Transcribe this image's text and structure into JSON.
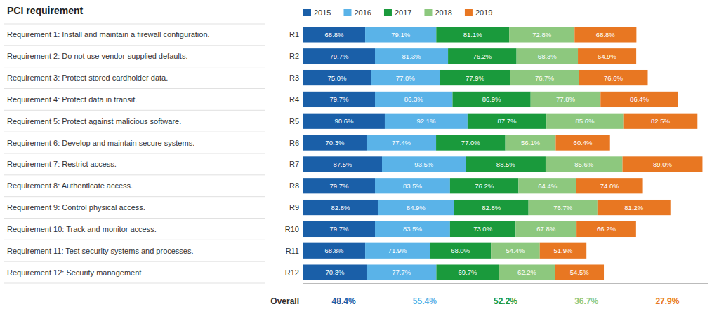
{
  "chart_data": {
    "type": "bar",
    "orientation": "horizontal",
    "stacked": true,
    "data_labels": true,
    "legend": "top",
    "tick_labels": "y",
    "title": "PCI requirement",
    "annotations": [
      "Requirement 1: Install and maintain a firewall configuration.",
      "Requirement 2: Do not use vendor-supplied defaults.",
      "Requirement 3: Protect stored cardholder data.",
      "Requirement 4: Protect data in transit.",
      "Requirement 5: Protect against malicious software.",
      "Requirement 6: Develop and maintain secure systems.",
      "Requirement 7: Restrict access.",
      "Requirement 8: Authenticate access.",
      "Requirement 9: Control physical access.",
      "Requirement 10: Track and monitor access.",
      "Requirement 11: Test security systems and processes.",
      "Requirement 12: Security management"
    ],
    "categories": [
      "R1",
      "R2",
      "R3",
      "R4",
      "R5",
      "R6",
      "R7",
      "R8",
      "R9",
      "R10",
      "R11",
      "R12"
    ],
    "xlim": [
      0,
      450
    ],
    "overall_label": "Overall",
    "series": [
      {
        "name": "2015",
        "color": "#1a5fa8",
        "values": [
          68.8,
          79.7,
          75.0,
          79.7,
          90.6,
          70.3,
          87.5,
          79.7,
          82.8,
          79.7,
          68.8,
          70.3
        ],
        "value_labels": [
          "68.8%",
          "79.7%",
          "75.0%",
          "79.7%",
          "90.6%",
          "70.3%",
          "87.5%",
          "79.7%",
          "82.8%",
          "79.7%",
          "68.8%",
          "70.3%"
        ],
        "overall": {
          "value": 48.4,
          "label": "48.4%"
        }
      },
      {
        "name": "2016",
        "color": "#5ab3e8",
        "values": [
          79.1,
          81.3,
          77.0,
          86.3,
          92.1,
          77.4,
          93.5,
          83.5,
          84.9,
          83.5,
          71.9,
          77.7
        ],
        "value_labels": [
          "79.1%",
          "81.3%",
          "77.0%",
          "86.3%",
          "92.1%",
          "77.4%",
          "93.5%",
          "83.5%",
          "84.9%",
          "83.5%",
          "71.9%",
          "77.7%"
        ],
        "overall": {
          "value": 55.4,
          "label": "55.4%"
        }
      },
      {
        "name": "2017",
        "color": "#1a9a3c",
        "values": [
          81.1,
          76.2,
          77.9,
          86.9,
          87.7,
          77.0,
          88.5,
          76.2,
          82.8,
          73.0,
          68.0,
          69.7
        ],
        "value_labels": [
          "81.1%",
          "76.2%",
          "77.9%",
          "86.9%",
          "87.7%",
          "77.0%",
          "88.5%",
          "76.2%",
          "82.8%",
          "73.0%",
          "68.0%",
          "69.7%"
        ],
        "overall": {
          "value": 52.2,
          "label": "52.2%"
        }
      },
      {
        "name": "2018",
        "color": "#8dc87e",
        "values": [
          72.8,
          68.3,
          76.7,
          77.8,
          85.6,
          56.1,
          85.6,
          64.4,
          76.7,
          67.8,
          54.4,
          62.2
        ],
        "value_labels": [
          "72.8%",
          "68.3%",
          "76.7%",
          "77.8%",
          "85.6%",
          "56.1%",
          "85.6%",
          "64.4%",
          "76.7%",
          "67.8%",
          "54.4%",
          "62.2%"
        ],
        "overall": {
          "value": 36.7,
          "label": "36.7%"
        }
      },
      {
        "name": "2019",
        "color": "#e87722",
        "values": [
          68.8,
          64.9,
          76.6,
          86.4,
          82.5,
          60.4,
          89.0,
          74.0,
          81.2,
          66.2,
          51.9,
          54.5
        ],
        "value_labels": [
          "68.8%",
          "64.9%",
          "76.6%",
          "86.4%",
          "82.5%",
          "60.4%",
          "89.0%",
          "74.0%",
          "81.2%",
          "66.2%",
          "51.9%",
          "54.5%"
        ],
        "overall": {
          "value": 27.9,
          "label": "27.9%"
        }
      }
    ]
  }
}
